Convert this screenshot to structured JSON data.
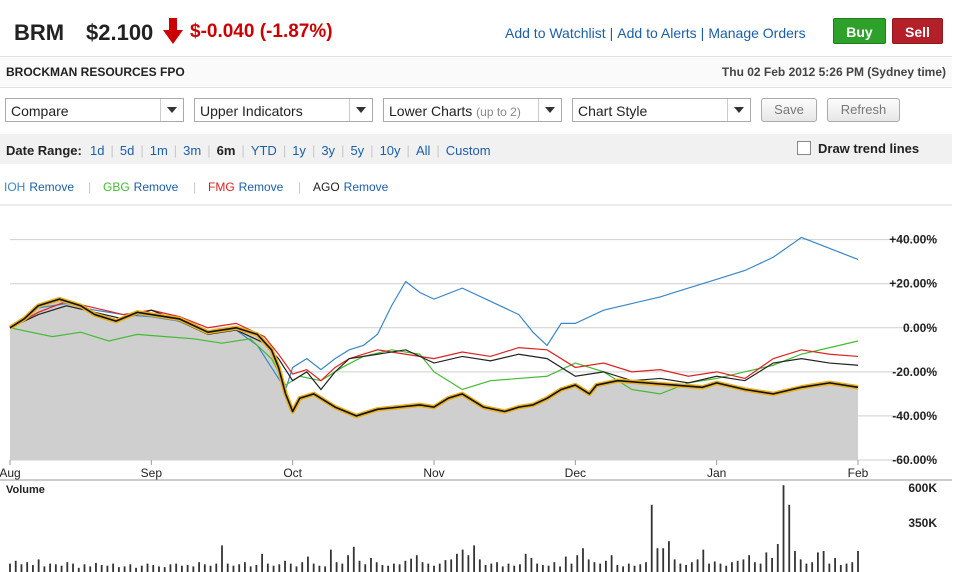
{
  "header": {
    "symbol": "BRM",
    "price": "$2.100",
    "change": "$-0.040 (-1.87%)",
    "links": [
      "Add to Watchlist",
      "Add to Alerts",
      "Manage Orders"
    ],
    "buy_label": "Buy",
    "sell_label": "Sell",
    "up_color": "#2ea12a",
    "down_color": "#cc0000"
  },
  "subheader": {
    "company": "BROCKMAN RESOURCES FPO",
    "datetime": "Thu 02 Feb 2012 5:26 PM (Sydney time)"
  },
  "controls": {
    "compare": "Compare",
    "upper_indicators": "Upper Indicators",
    "lower_charts": "Lower Charts",
    "lower_charts_hint": "(up to 2)",
    "chart_style": "Chart Style",
    "save_label": "Save",
    "refresh_label": "Refresh"
  },
  "date_range": {
    "label": "Date Range:",
    "options": [
      "1d",
      "5d",
      "1m",
      "3m",
      "6m",
      "YTD",
      "1y",
      "3y",
      "5y",
      "10y",
      "All",
      "Custom"
    ],
    "active": "6m",
    "trend_label": "Draw trend lines"
  },
  "compare_list": [
    {
      "symbol": "IOH",
      "remove": "Remove",
      "color": "#3a86c8"
    },
    {
      "symbol": "GBG",
      "remove": "Remove",
      "color": "#44bb33"
    },
    {
      "symbol": "FMG",
      "remove": "Remove",
      "color": "#dd2222"
    },
    {
      "symbol": "AGO",
      "remove": "Remove",
      "color": "#222222"
    }
  ],
  "chart_data": {
    "type": "line",
    "x_tick_labels": [
      "Aug",
      "Sep",
      "Oct",
      "Nov",
      "Dec",
      "Jan",
      "Feb"
    ],
    "y_tick_labels": [
      "+40.00%",
      "+20.00%",
      "0.00%",
      "-20.00%",
      "-40.00%",
      "-60.00%"
    ],
    "y_ticks": [
      40,
      20,
      0,
      -20,
      -40,
      -60
    ],
    "ylim": [
      -60,
      48
    ],
    "x_range": [
      0,
      6
    ],
    "series": [
      {
        "name": "BRM",
        "color": "#e8b020",
        "values": [
          [
            0,
            0
          ],
          [
            0.1,
            4
          ],
          [
            0.2,
            10
          ],
          [
            0.35,
            13
          ],
          [
            0.5,
            10
          ],
          [
            0.6,
            6
          ],
          [
            0.75,
            3
          ],
          [
            0.9,
            7
          ],
          [
            1,
            6
          ],
          [
            1.2,
            4
          ],
          [
            1.4,
            -2
          ],
          [
            1.6,
            0
          ],
          [
            1.75,
            -3
          ],
          [
            1.85,
            -10
          ],
          [
            1.9,
            -18
          ],
          [
            1.95,
            -30
          ],
          [
            2,
            -38
          ],
          [
            2.05,
            -32
          ],
          [
            2.15,
            -30
          ],
          [
            2.3,
            -36
          ],
          [
            2.45,
            -40
          ],
          [
            2.6,
            -37
          ],
          [
            2.75,
            -36
          ],
          [
            2.9,
            -35
          ],
          [
            3,
            -36
          ],
          [
            3.1,
            -32
          ],
          [
            3.2,
            -30
          ],
          [
            3.35,
            -36
          ],
          [
            3.5,
            -38
          ],
          [
            3.6,
            -36
          ],
          [
            3.7,
            -35
          ],
          [
            3.8,
            -32
          ],
          [
            3.9,
            -28
          ],
          [
            4,
            -26
          ],
          [
            4.1,
            -30
          ],
          [
            4.15,
            -26
          ],
          [
            4.3,
            -24
          ],
          [
            4.5,
            -25
          ],
          [
            4.7,
            -26
          ],
          [
            4.9,
            -27
          ],
          [
            5,
            -25
          ],
          [
            5.2,
            -28
          ],
          [
            5.4,
            -30
          ],
          [
            5.6,
            -27
          ],
          [
            5.8,
            -25
          ],
          [
            6,
            -27
          ]
        ]
      },
      {
        "name": "IOH",
        "color": "#3a86c8",
        "values": [
          [
            0,
            0
          ],
          [
            0.2,
            9
          ],
          [
            0.4,
            11
          ],
          [
            0.6,
            8
          ],
          [
            0.8,
            6
          ],
          [
            1,
            5
          ],
          [
            1.2,
            3
          ],
          [
            1.4,
            -2
          ],
          [
            1.6,
            -1
          ],
          [
            1.75,
            -8
          ],
          [
            1.85,
            -18
          ],
          [
            1.95,
            -28
          ],
          [
            2,
            -18
          ],
          [
            2.1,
            -14
          ],
          [
            2.2,
            -19
          ],
          [
            2.3,
            -14
          ],
          [
            2.4,
            -10
          ],
          [
            2.5,
            -8
          ],
          [
            2.6,
            -3
          ],
          [
            2.7,
            10
          ],
          [
            2.8,
            21
          ],
          [
            2.9,
            16
          ],
          [
            3,
            13
          ],
          [
            3.2,
            18
          ],
          [
            3.4,
            12
          ],
          [
            3.6,
            6
          ],
          [
            3.7,
            -2
          ],
          [
            3.8,
            -8
          ],
          [
            3.9,
            2
          ],
          [
            4,
            2
          ],
          [
            4.2,
            8
          ],
          [
            4.4,
            11
          ],
          [
            4.6,
            14
          ],
          [
            4.8,
            18
          ],
          [
            5,
            22
          ],
          [
            5.2,
            26
          ],
          [
            5.4,
            32
          ],
          [
            5.6,
            41
          ],
          [
            5.8,
            36
          ],
          [
            6,
            31
          ]
        ]
      },
      {
        "name": "GBG",
        "color": "#44bb33",
        "values": [
          [
            0,
            0
          ],
          [
            0.3,
            -4
          ],
          [
            0.5,
            -2
          ],
          [
            0.7,
            -6
          ],
          [
            0.9,
            -3
          ],
          [
            1.1,
            -4
          ],
          [
            1.3,
            -5
          ],
          [
            1.5,
            -7
          ],
          [
            1.7,
            -5
          ],
          [
            1.85,
            -14
          ],
          [
            1.95,
            -26
          ],
          [
            2.05,
            -22
          ],
          [
            2.2,
            -24
          ],
          [
            2.35,
            -18
          ],
          [
            2.5,
            -13
          ],
          [
            2.7,
            -10
          ],
          [
            2.9,
            -12
          ],
          [
            3,
            -20
          ],
          [
            3.2,
            -28
          ],
          [
            3.4,
            -24
          ],
          [
            3.6,
            -23
          ],
          [
            3.8,
            -22
          ],
          [
            4,
            -16
          ],
          [
            4.2,
            -20
          ],
          [
            4.4,
            -28
          ],
          [
            4.6,
            -30
          ],
          [
            4.8,
            -25
          ],
          [
            5,
            -23
          ],
          [
            5.2,
            -20
          ],
          [
            5.4,
            -17
          ],
          [
            5.6,
            -12
          ],
          [
            5.8,
            -9
          ],
          [
            6,
            -6
          ]
        ]
      },
      {
        "name": "FMG",
        "color": "#dd2222",
        "values": [
          [
            0,
            0
          ],
          [
            0.2,
            7
          ],
          [
            0.4,
            12
          ],
          [
            0.6,
            9
          ],
          [
            0.8,
            6
          ],
          [
            1,
            8
          ],
          [
            1.2,
            5
          ],
          [
            1.4,
            0
          ],
          [
            1.6,
            2
          ],
          [
            1.8,
            -4
          ],
          [
            1.9,
            -12
          ],
          [
            2,
            -21
          ],
          [
            2.1,
            -19
          ],
          [
            2.2,
            -24
          ],
          [
            2.3,
            -18
          ],
          [
            2.4,
            -14
          ],
          [
            2.6,
            -10
          ],
          [
            2.8,
            -12
          ],
          [
            3,
            -14
          ],
          [
            3.2,
            -11
          ],
          [
            3.4,
            -13
          ],
          [
            3.6,
            -9
          ],
          [
            3.8,
            -10
          ],
          [
            4,
            -18
          ],
          [
            4.2,
            -16
          ],
          [
            4.4,
            -20
          ],
          [
            4.6,
            -19
          ],
          [
            4.8,
            -22
          ],
          [
            5,
            -20
          ],
          [
            5.2,
            -23
          ],
          [
            5.4,
            -14
          ],
          [
            5.6,
            -10
          ],
          [
            5.8,
            -12
          ],
          [
            6,
            -13
          ]
        ]
      },
      {
        "name": "AGO",
        "color": "#222222",
        "values": [
          [
            0,
            0
          ],
          [
            0.2,
            6
          ],
          [
            0.4,
            10
          ],
          [
            0.6,
            7
          ],
          [
            0.8,
            4
          ],
          [
            1,
            8
          ],
          [
            1.2,
            3
          ],
          [
            1.4,
            -3
          ],
          [
            1.6,
            -1
          ],
          [
            1.8,
            -7
          ],
          [
            1.9,
            -14
          ],
          [
            2,
            -24
          ],
          [
            2.1,
            -20
          ],
          [
            2.2,
            -28
          ],
          [
            2.3,
            -20
          ],
          [
            2.4,
            -14
          ],
          [
            2.6,
            -12
          ],
          [
            2.8,
            -10
          ],
          [
            3,
            -16
          ],
          [
            3.2,
            -13
          ],
          [
            3.4,
            -15
          ],
          [
            3.6,
            -12
          ],
          [
            3.8,
            -14
          ],
          [
            4,
            -22
          ],
          [
            4.2,
            -20
          ],
          [
            4.4,
            -24
          ],
          [
            4.6,
            -23
          ],
          [
            4.8,
            -25
          ],
          [
            5,
            -22
          ],
          [
            5.2,
            -24
          ],
          [
            5.4,
            -16
          ],
          [
            5.6,
            -14
          ],
          [
            5.8,
            -16
          ],
          [
            6,
            -17
          ]
        ]
      }
    ],
    "volume": {
      "label": "Volume",
      "y_tick_labels": [
        "600K",
        "350K"
      ],
      "y_ticks": [
        600,
        350
      ],
      "ylim": [
        0,
        600
      ],
      "values": [
        60,
        80,
        55,
        70,
        50,
        90,
        40,
        60,
        55,
        45,
        70,
        60,
        30,
        55,
        40,
        65,
        50,
        45,
        60,
        35,
        40,
        55,
        30,
        45,
        60,
        50,
        40,
        35,
        55,
        60,
        45,
        50,
        40,
        70,
        55,
        45,
        60,
        190,
        60,
        45,
        55,
        70,
        40,
        50,
        130,
        60,
        45,
        55,
        80,
        60,
        40,
        70,
        110,
        60,
        45,
        40,
        160,
        70,
        60,
        120,
        180,
        80,
        55,
        100,
        70,
        50,
        45,
        60,
        55,
        80,
        95,
        120,
        70,
        60,
        45,
        60,
        85,
        90,
        130,
        160,
        120,
        190,
        90,
        50,
        60,
        70,
        40,
        60,
        45,
        55,
        130,
        100,
        60,
        50,
        45,
        70,
        40,
        110,
        60,
        120,
        170,
        90,
        70,
        60,
        80,
        120,
        50,
        40,
        60,
        45,
        55,
        70,
        480,
        170,
        170,
        220,
        90,
        60,
        50,
        70,
        90,
        160,
        60,
        75,
        60,
        45,
        70,
        80,
        90,
        120,
        70,
        60,
        140,
        100,
        200,
        620,
        480,
        150,
        90,
        60,
        70,
        140,
        150,
        60,
        100,
        50,
        60,
        70,
        150
      ]
    }
  }
}
